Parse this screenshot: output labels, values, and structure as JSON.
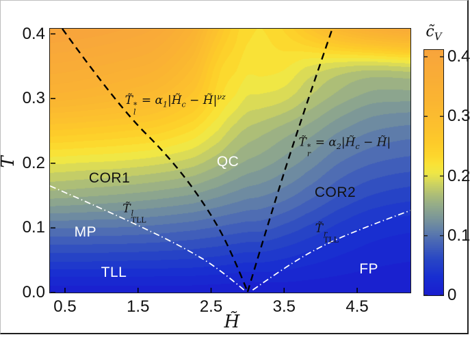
{
  "figure": {
    "x_axis_label": "H̃",
    "y_axis_label": "T̃",
    "colorbar_label": {
      "base": "c̃",
      "sub": "V"
    },
    "x_tick_labels": [
      "0.5",
      "1.5",
      "2.5",
      "3.5",
      "4.5"
    ],
    "y_tick_labels": [
      "0.0",
      "0.1",
      "0.2",
      "0.3",
      "0.4"
    ],
    "colorbar_tick_labels": [
      "0",
      "0.1",
      "0.2",
      "0.3",
      "0.4"
    ]
  },
  "annotations": {
    "formula_left": {
      "h": 2.01,
      "t": 0.2917,
      "color": "#111111",
      "base": "T̃",
      "sup": "*",
      "sub": "l",
      "eq": " = α",
      "asub": "1",
      "seg": "|H̃",
      "csub": "c",
      "seg2": " − H̃|",
      "exp": "νz"
    },
    "formula_right": {
      "h": 4.33,
      "t": 0.2262,
      "color": "#111111",
      "base": "T̃",
      "sup": "*",
      "sub": "r",
      "eq": " = α",
      "asub": "2",
      "seg": "|H̃",
      "csub": "c",
      "seg2": " − H̃|",
      "exp": ""
    },
    "tll_left": {
      "h": 1.455,
      "t": 0.1237,
      "color": "#111111",
      "base": "T̃",
      "sup": "l",
      "sub": "TLL"
    },
    "tll_right": {
      "h": 4.09,
      "t": 0.093,
      "color": "#111111",
      "base": "T̃",
      "sup": "r",
      "sub": "TLL"
    },
    "phases": [
      {
        "label": "COR1",
        "h": 1.11,
        "t": 0.1765,
        "color": "#111111"
      },
      {
        "label": "MP",
        "h": 0.78,
        "t": 0.093,
        "color": "#ffffff"
      },
      {
        "label": "TLL",
        "h": 1.17,
        "t": 0.0307,
        "color": "#ffffff"
      },
      {
        "label": "QC",
        "h": 2.73,
        "t": 0.2019,
        "color": "#ffffff"
      },
      {
        "label": "COR2",
        "h": 4.2,
        "t": 0.1543,
        "color": "#111111"
      },
      {
        "label": "FP",
        "h": 4.66,
        "t": 0.0359,
        "color": "#ffffff"
      }
    ]
  },
  "chart_data": {
    "type": "heatmap",
    "quantity": "specific heat c̃V vs field H̃ and temperature T̃",
    "x_range": [
      0.294,
      5.23
    ],
    "y_range": [
      0,
      0.408
    ],
    "grid_H": [
      0.294,
      0.75,
      1.25,
      1.75,
      2.25,
      2.6,
      2.85,
      3.0,
      3.2,
      3.5,
      3.8,
      4.25,
      4.7,
      5.23
    ],
    "grid_T": [
      0,
      0.05,
      0.1,
      0.15,
      0.2,
      0.25,
      0.3,
      0.35,
      0.4
    ],
    "values_cV": [
      [
        0.006,
        0.006,
        0.006,
        0.006,
        0.006,
        0.005,
        0.004,
        0.003,
        0.004,
        0.005,
        0.005,
        0.005,
        0.005,
        0.005
      ],
      [
        0.052,
        0.052,
        0.051,
        0.05,
        0.048,
        0.045,
        0.042,
        0.04,
        0.04,
        0.036,
        0.03,
        0.022,
        0.016,
        0.013
      ],
      [
        0.101,
        0.1,
        0.099,
        0.096,
        0.091,
        0.086,
        0.082,
        0.08,
        0.079,
        0.071,
        0.061,
        0.046,
        0.034,
        0.028
      ],
      [
        0.155,
        0.152,
        0.148,
        0.143,
        0.136,
        0.127,
        0.12,
        0.116,
        0.113,
        0.105,
        0.093,
        0.075,
        0.062,
        0.055
      ],
      [
        0.202,
        0.199,
        0.196,
        0.19,
        0.18,
        0.165,
        0.153,
        0.147,
        0.142,
        0.132,
        0.12,
        0.1,
        0.088,
        0.082
      ],
      [
        0.261,
        0.257,
        0.251,
        0.243,
        0.224,
        0.199,
        0.18,
        0.172,
        0.166,
        0.156,
        0.145,
        0.126,
        0.113,
        0.107
      ],
      [
        0.33,
        0.324,
        0.314,
        0.299,
        0.268,
        0.228,
        0.209,
        0.198,
        0.196,
        0.19,
        0.175,
        0.156,
        0.143,
        0.141
      ],
      [
        0.372,
        0.366,
        0.356,
        0.342,
        0.301,
        0.244,
        0.227,
        0.217,
        0.218,
        0.215,
        0.201,
        0.19,
        0.185,
        0.19
      ],
      [
        0.411,
        0.406,
        0.396,
        0.379,
        0.334,
        0.272,
        0.24,
        0.228,
        0.224,
        0.236,
        0.26,
        0.3,
        0.33,
        0.351
      ]
    ],
    "clim": [
      0,
      0.4115
    ],
    "contour_step": 0.0125,
    "colormap": [
      {
        "v": 0.0,
        "rgb": [
          26,
          30,
          206
        ]
      },
      {
        "v": 0.03,
        "rgb": [
          24,
          46,
          209
        ]
      },
      {
        "v": 0.06,
        "rgb": [
          40,
          70,
          197
        ]
      },
      {
        "v": 0.09,
        "rgb": [
          74,
          104,
          181
        ]
      },
      {
        "v": 0.11,
        "rgb": [
          99,
          129,
          168
        ]
      },
      {
        "v": 0.13,
        "rgb": [
          124,
          151,
          152
        ]
      },
      {
        "v": 0.15,
        "rgb": [
          147,
          171,
          138
        ]
      },
      {
        "v": 0.17,
        "rgb": [
          175,
          191,
          118
        ]
      },
      {
        "v": 0.19,
        "rgb": [
          212,
          215,
          92
        ]
      },
      {
        "v": 0.205,
        "rgb": [
          239,
          231,
          70
        ]
      },
      {
        "v": 0.22,
        "rgb": [
          250,
          226,
          54
        ]
      },
      {
        "v": 0.235,
        "rgb": [
          253,
          214,
          44
        ]
      },
      {
        "v": 0.255,
        "rgb": [
          253,
          203,
          42
        ]
      },
      {
        "v": 0.285,
        "rgb": [
          252,
          192,
          46
        ]
      },
      {
        "v": 0.33,
        "rgb": [
          250,
          180,
          50
        ]
      },
      {
        "v": 0.412,
        "rgb": [
          248,
          164,
          60
        ]
      }
    ],
    "lines": {
      "dashed_left": {
        "style": "dashed",
        "color": "#000000",
        "points": [
          [
            0.463,
            0.408
          ],
          [
            1.23,
            0.288
          ],
          [
            1.98,
            0.204
          ],
          [
            2.55,
            0.114
          ],
          [
            2.85,
            0.044
          ],
          [
            3.0,
            0.001
          ]
        ]
      },
      "dashed_right": {
        "style": "dashed",
        "color": "#000000",
        "points": [
          [
            3.0,
            0.001
          ],
          [
            3.3,
            0.114
          ],
          [
            3.7,
            0.257
          ],
          [
            4.16,
            0.408
          ]
        ]
      },
      "dashdot_left": {
        "style": "dash-dot",
        "color": "#ffffff",
        "points": [
          [
            0.294,
            0.165
          ],
          [
            0.9,
            0.135
          ],
          [
            1.54,
            0.102
          ],
          [
            2.1,
            0.071
          ],
          [
            2.6,
            0.038
          ],
          [
            2.95,
            0.004
          ]
        ]
      },
      "dashdot_right": {
        "style": "dash-dot",
        "color": "#ffffff",
        "points": [
          [
            3.07,
            0.004
          ],
          [
            3.6,
            0.046
          ],
          [
            4.1,
            0.077
          ],
          [
            4.7,
            0.105
          ],
          [
            5.23,
            0.127
          ]
        ]
      }
    },
    "x_ticks": [
      0.5,
      1.5,
      2.5,
      3.5,
      4.5
    ],
    "y_ticks": [
      0,
      0.1,
      0.2,
      0.3,
      0.4
    ],
    "cb_ticks": [
      0,
      0.1,
      0.2,
      0.3,
      0.4
    ]
  }
}
